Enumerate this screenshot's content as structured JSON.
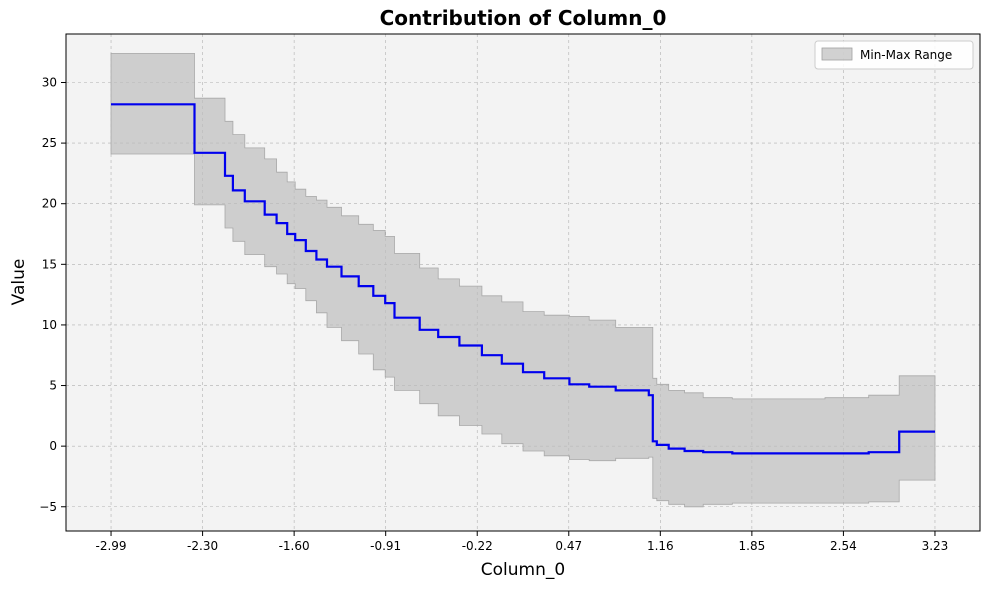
{
  "chart_data": {
    "type": "line",
    "title": "Contribution of Column_0",
    "xlabel": "Column_0",
    "ylabel": "Value",
    "x_tick_labels": [
      "-2.99",
      "-2.30",
      "-1.60",
      "-0.91",
      "-0.22",
      "0.47",
      "1.16",
      "1.85",
      "2.54",
      "3.23"
    ],
    "y_tick_labels": [
      "−5",
      "0",
      "5",
      "10",
      "15",
      "20",
      "25",
      "30"
    ],
    "y_ticks": [
      -5,
      0,
      5,
      10,
      15,
      20,
      25,
      30
    ],
    "xlim": [
      -3.33,
      3.57
    ],
    "ylim": [
      -7,
      34
    ],
    "grid": true,
    "legend": {
      "entries": [
        "Min-Max Range"
      ],
      "placement": "top-right"
    },
    "colors": {
      "line": "#0000ee",
      "band": "#bdbdbd",
      "plot_bg": "#f3f3f3"
    },
    "series": [
      {
        "kind": "step-line",
        "x": [
          -2.99,
          -2.36,
          -2.13,
          -2.07,
          -1.98,
          -1.83,
          -1.74,
          -1.66,
          -1.6,
          -1.52,
          -1.44,
          -1.36,
          -1.25,
          -1.12,
          -1.01,
          -0.92,
          -0.85,
          -0.66,
          -0.52,
          -0.36,
          -0.19,
          -0.04,
          0.12,
          0.28,
          0.47,
          0.62,
          0.82,
          1.07,
          1.1,
          1.13,
          1.22,
          1.34,
          1.48,
          1.7,
          2.0,
          2.4,
          2.73,
          2.96,
          3.23
        ],
        "y": [
          28.2,
          24.2,
          22.3,
          21.1,
          20.2,
          19.1,
          18.4,
          17.5,
          17.0,
          16.1,
          15.4,
          14.8,
          14.0,
          13.2,
          12.4,
          11.8,
          10.6,
          9.6,
          9.0,
          8.3,
          7.5,
          6.8,
          6.1,
          5.6,
          5.1,
          4.9,
          4.6,
          4.2,
          0.4,
          0.1,
          -0.2,
          -0.4,
          -0.5,
          -0.6,
          -0.6,
          -0.6,
          -0.5,
          1.2,
          1.2
        ]
      },
      {
        "name": "Min-Max Range",
        "kind": "band",
        "x": [
          -2.99,
          -2.36,
          -2.13,
          -2.07,
          -1.98,
          -1.83,
          -1.74,
          -1.66,
          -1.6,
          -1.52,
          -1.44,
          -1.36,
          -1.25,
          -1.12,
          -1.01,
          -0.92,
          -0.85,
          -0.66,
          -0.52,
          -0.36,
          -0.19,
          -0.04,
          0.12,
          0.28,
          0.47,
          0.62,
          0.82,
          1.07,
          1.1,
          1.13,
          1.22,
          1.34,
          1.48,
          1.7,
          2.0,
          2.4,
          2.73,
          2.96,
          3.23
        ],
        "y_min": [
          24.1,
          19.9,
          18.0,
          16.9,
          15.8,
          14.8,
          14.2,
          13.4,
          13.0,
          12.0,
          11.0,
          9.8,
          8.7,
          7.6,
          6.3,
          5.7,
          4.6,
          3.5,
          2.5,
          1.7,
          1.0,
          0.2,
          -0.4,
          -0.8,
          -1.1,
          -1.2,
          -1.0,
          -0.9,
          -4.3,
          -4.5,
          -4.8,
          -5.0,
          -4.8,
          -4.7,
          -4.7,
          -4.7,
          -4.6,
          -2.8,
          -2.8
        ],
        "y_max": [
          32.4,
          28.7,
          26.8,
          25.7,
          24.6,
          23.7,
          22.6,
          21.8,
          21.2,
          20.6,
          20.3,
          19.7,
          19.0,
          18.3,
          17.8,
          17.3,
          15.9,
          14.7,
          13.8,
          13.2,
          12.4,
          11.9,
          11.1,
          10.8,
          10.7,
          10.4,
          9.8,
          9.8,
          5.6,
          5.1,
          4.6,
          4.4,
          4.0,
          3.9,
          3.9,
          4.0,
          4.2,
          5.8,
          5.8
        ]
      }
    ]
  }
}
